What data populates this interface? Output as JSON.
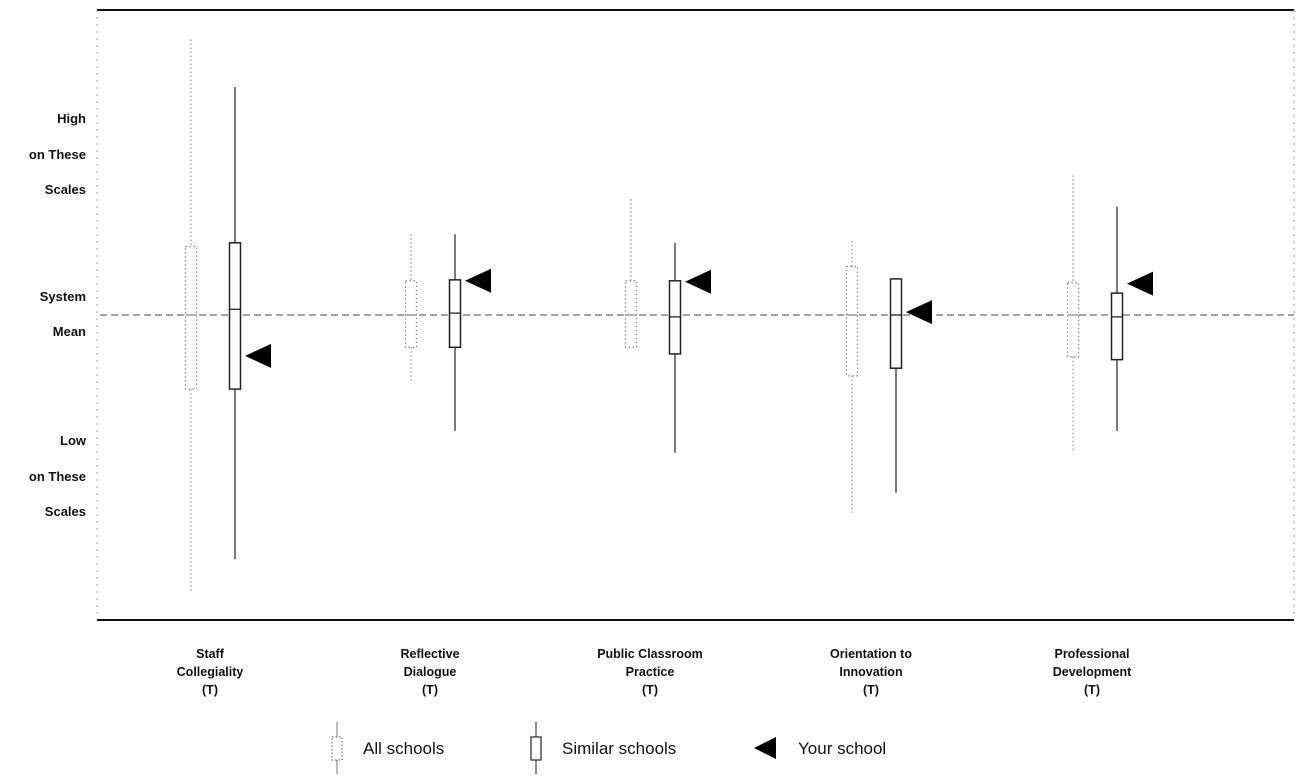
{
  "chart_data": {
    "type": "boxplot",
    "y_axis": {
      "label_high": [
        "High",
        "on These",
        "Scales"
      ],
      "label_mid": [
        "System",
        "Mean"
      ],
      "label_low": [
        "Low",
        "on These",
        "Scales"
      ],
      "ticks_shown": false,
      "reference_line": "System Mean",
      "ylim": [
        -3.0,
        3.0
      ]
    },
    "grid": false,
    "legend": {
      "placement": "bottom-center",
      "entries": [
        {
          "label": "All schools",
          "symbol": "dotted-box"
        },
        {
          "label": "Similar schools",
          "symbol": "solid-box"
        },
        {
          "label": "Your school",
          "symbol": "left-pointing-triangle"
        }
      ]
    },
    "categories": [
      {
        "name_lines": [
          "Staff",
          "Collegiality",
          "(T)"
        ],
        "all_schools": {
          "min": -2.9,
          "q1": -0.78,
          "median": 0.0,
          "q3": 0.72,
          "max": 2.9
        },
        "similar_schools": {
          "min": -2.57,
          "q1": -0.78,
          "median": 0.06,
          "q3": 0.76,
          "max": 2.4
        },
        "your_school": -0.43
      },
      {
        "name_lines": [
          "Reflective",
          "Dialogue",
          "(T)"
        ],
        "all_schools": {
          "min": -0.69,
          "q1": -0.34,
          "median": 0.0,
          "q3": 0.36,
          "max": 0.85
        },
        "similar_schools": {
          "min": -1.22,
          "q1": -0.34,
          "median": 0.02,
          "q3": 0.37,
          "max": 0.85
        },
        "your_school": 0.36
      },
      {
        "name_lines": [
          "Public Classroom",
          "Practice",
          "(T)"
        ],
        "all_schools": {
          "min": -0.34,
          "q1": -0.34,
          "median": 0.0,
          "q3": 0.36,
          "max": 1.22
        },
        "similar_schools": {
          "min": -1.45,
          "q1": -0.41,
          "median": -0.02,
          "q3": 0.36,
          "max": 0.76
        },
        "your_school": 0.35
      },
      {
        "name_lines": [
          "Orientation to",
          "Innovation",
          "(T)"
        ],
        "all_schools": {
          "min": -2.08,
          "q1": -0.64,
          "median": 0.0,
          "q3": 0.51,
          "max": 0.78
        },
        "similar_schools": {
          "min": -1.87,
          "q1": -0.56,
          "median": 0.0,
          "q3": 0.38,
          "max": 0.38
        },
        "your_school": 0.03
      },
      {
        "name_lines": [
          "Professional",
          "Development",
          "(T)"
        ],
        "all_schools": {
          "min": -1.43,
          "q1": -0.44,
          "median": 0.0,
          "q3": 0.34,
          "max": 1.47
        },
        "similar_schools": {
          "min": -1.22,
          "q1": -0.47,
          "median": -0.02,
          "q3": 0.23,
          "max": 1.14
        },
        "your_school": 0.33
      }
    ]
  }
}
